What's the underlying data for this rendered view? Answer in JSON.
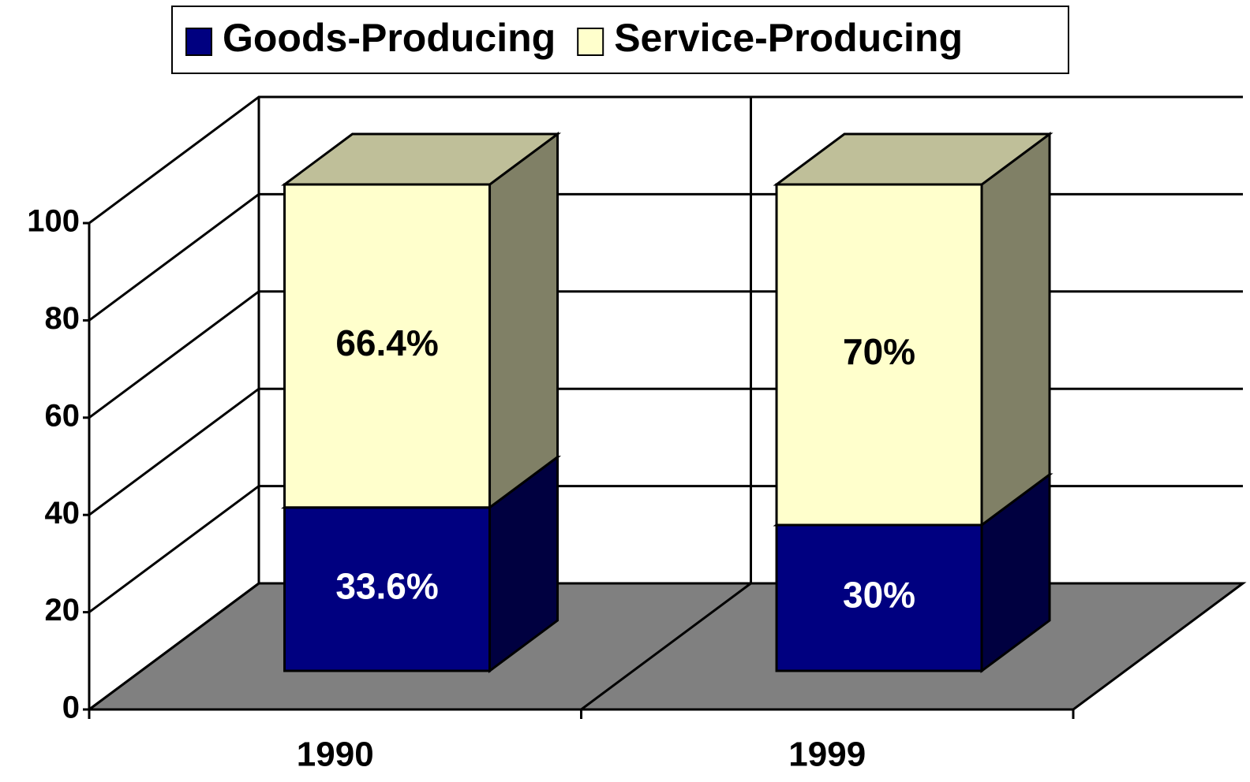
{
  "chart_data": {
    "type": "bar3d_stacked",
    "categories": [
      "1990",
      "1999"
    ],
    "series": [
      {
        "name": "Goods-Producing",
        "color": "#000080",
        "values": [
          33.6,
          30
        ],
        "value_labels": [
          "33.6%",
          "30%"
        ]
      },
      {
        "name": "Service-Producing",
        "color": "#ffffcc",
        "values": [
          66.4,
          70
        ],
        "value_labels": [
          "66.4%",
          "70%"
        ]
      }
    ],
    "ylim": [
      0,
      100
    ],
    "yticks": [
      0,
      20,
      40,
      60,
      80,
      100
    ],
    "grid": true,
    "legend": "top"
  }
}
